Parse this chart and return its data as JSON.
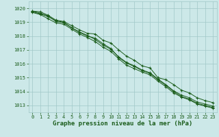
{
  "bg_color": "#cce8e8",
  "grid_color": "#a0c8c8",
  "line_color": "#1a5c1a",
  "marker_color": "#1a5c1a",
  "xlabel": "Graphe pression niveau de la mer (hPa)",
  "xlabel_fontsize": 6.5,
  "xlabel_color": "#1a5c1a",
  "tick_color": "#1a5c1a",
  "tick_fontsize": 5.0,
  "ylim": [
    1012.5,
    1020.5
  ],
  "xlim": [
    -0.5,
    23.5
  ],
  "yticks": [
    1013,
    1014,
    1015,
    1016,
    1017,
    1018,
    1019,
    1020
  ],
  "xticks": [
    0,
    1,
    2,
    3,
    4,
    5,
    6,
    7,
    8,
    9,
    10,
    11,
    12,
    13,
    14,
    15,
    16,
    17,
    18,
    19,
    20,
    21,
    22,
    23
  ],
  "hours": [
    0,
    1,
    2,
    3,
    4,
    5,
    6,
    7,
    8,
    9,
    10,
    11,
    12,
    13,
    14,
    15,
    16,
    17,
    18,
    19,
    20,
    21,
    22,
    23
  ],
  "series": [
    [
      1019.8,
      1019.75,
      1019.5,
      1019.15,
      1019.05,
      1018.75,
      1018.45,
      1018.2,
      1018.15,
      1017.7,
      1017.5,
      1017.0,
      1016.55,
      1016.25,
      1015.85,
      1015.7,
      1015.0,
      1014.85,
      1014.5,
      1014.1,
      1013.9,
      1013.55,
      1013.35,
      1013.2
    ],
    [
      1019.75,
      1019.6,
      1019.4,
      1019.1,
      1019.0,
      1018.6,
      1018.3,
      1018.05,
      1017.75,
      1017.35,
      1017.05,
      1016.5,
      1016.1,
      1015.85,
      1015.55,
      1015.35,
      1014.9,
      1014.5,
      1014.05,
      1013.75,
      1013.55,
      1013.25,
      1013.1,
      1012.95
    ],
    [
      1019.7,
      1019.55,
      1019.25,
      1018.95,
      1018.85,
      1018.5,
      1018.15,
      1017.9,
      1017.6,
      1017.2,
      1016.9,
      1016.35,
      1015.9,
      1015.65,
      1015.4,
      1015.2,
      1014.75,
      1014.35,
      1013.9,
      1013.6,
      1013.4,
      1013.1,
      1012.95,
      1012.8
    ],
    [
      1019.8,
      1019.65,
      1019.45,
      1019.05,
      1018.95,
      1018.6,
      1018.25,
      1018.0,
      1017.85,
      1017.45,
      1017.1,
      1016.45,
      1016.05,
      1015.8,
      1015.5,
      1015.3,
      1014.85,
      1014.45,
      1014.0,
      1013.65,
      1013.45,
      1013.15,
      1013.0,
      1012.85
    ]
  ]
}
